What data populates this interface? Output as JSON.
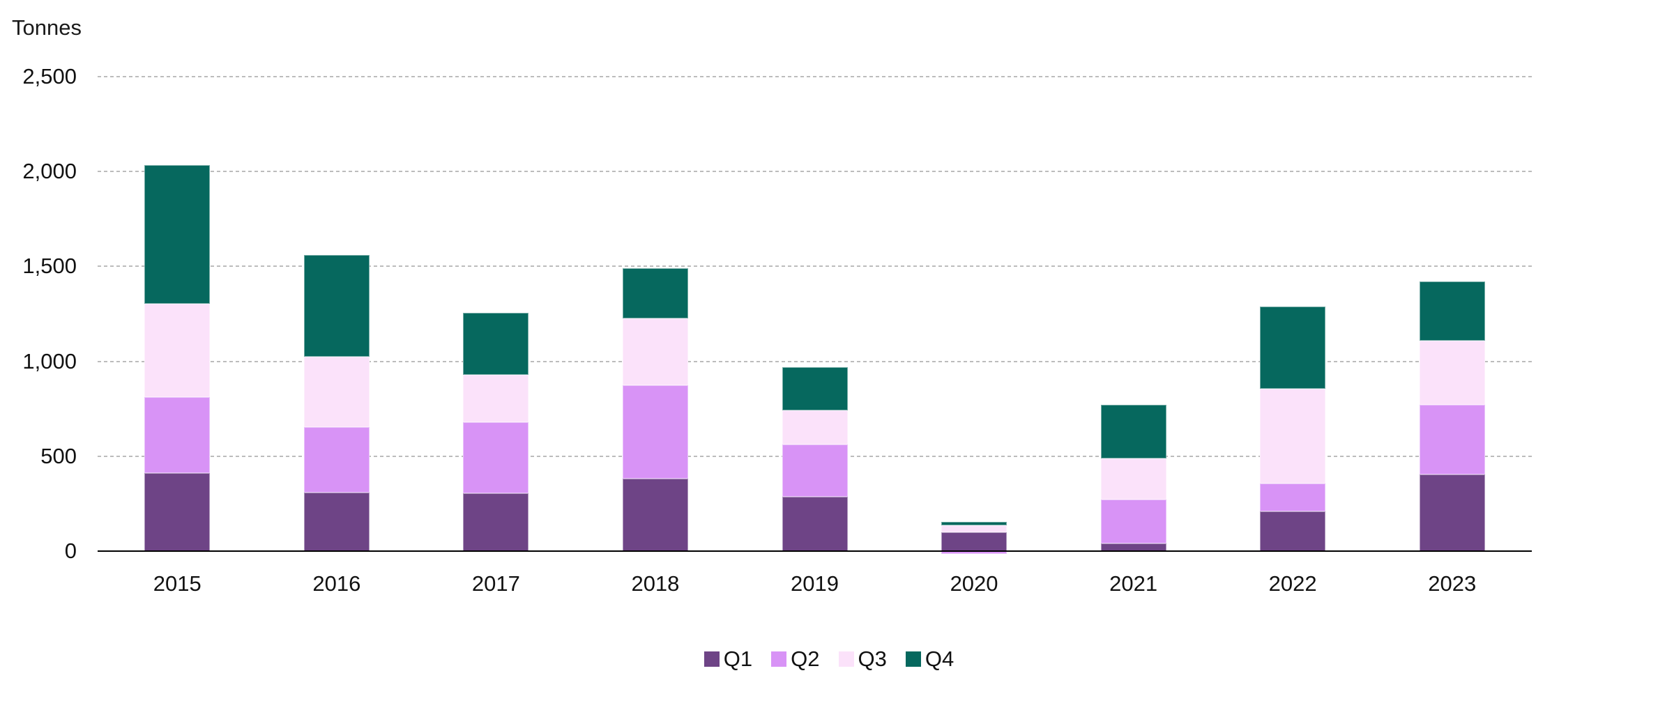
{
  "chart_data": {
    "type": "bar",
    "variant": "stacked-column",
    "title": "",
    "ylabel": "Tonnes",
    "xlabel": "",
    "categories": [
      "2015",
      "2016",
      "2017",
      "2018",
      "2019",
      "2020",
      "2021",
      "2022",
      "2023"
    ],
    "series": [
      {
        "name": "Q1",
        "color": "#6E4486",
        "pattern": "solid",
        "values": [
          410,
          310,
          305,
          380,
          285,
          100,
          40,
          210,
          405
        ]
      },
      {
        "name": "Q2",
        "color": "#D893F6",
        "pattern": "solid",
        "values": [
          400,
          345,
          375,
          495,
          275,
          -15,
          230,
          145,
          365
        ]
      },
      {
        "name": "Q3",
        "color": "#FBE2FA",
        "pattern": "dots",
        "values": [
          495,
          370,
          250,
          350,
          180,
          35,
          220,
          500,
          340
        ]
      },
      {
        "name": "Q4",
        "color": "#06685E",
        "pattern": "solid",
        "values": [
          730,
          535,
          325,
          265,
          230,
          20,
          280,
          435,
          310
        ]
      }
    ],
    "stack_totals": [
      2035,
      1560,
      1255,
      1490,
      970,
      155,
      770,
      1290,
      1420
    ],
    "ylim": [
      0,
      2500
    ],
    "yticks": [
      {
        "value": 0,
        "label": "0"
      },
      {
        "value": 500,
        "label": "500"
      },
      {
        "value": 1000,
        "label": "1,000"
      },
      {
        "value": 1500,
        "label": "1,500"
      },
      {
        "value": 2000,
        "label": "2,000"
      },
      {
        "value": 2500,
        "label": "2,500"
      }
    ],
    "grid": "horizontal-dashed",
    "gridline_color": "#bcbcbc",
    "axis_line_color": "#000000",
    "legend_position": "bottom-center",
    "legend": [
      "Q1",
      "Q2",
      "Q3",
      "Q4"
    ]
  }
}
